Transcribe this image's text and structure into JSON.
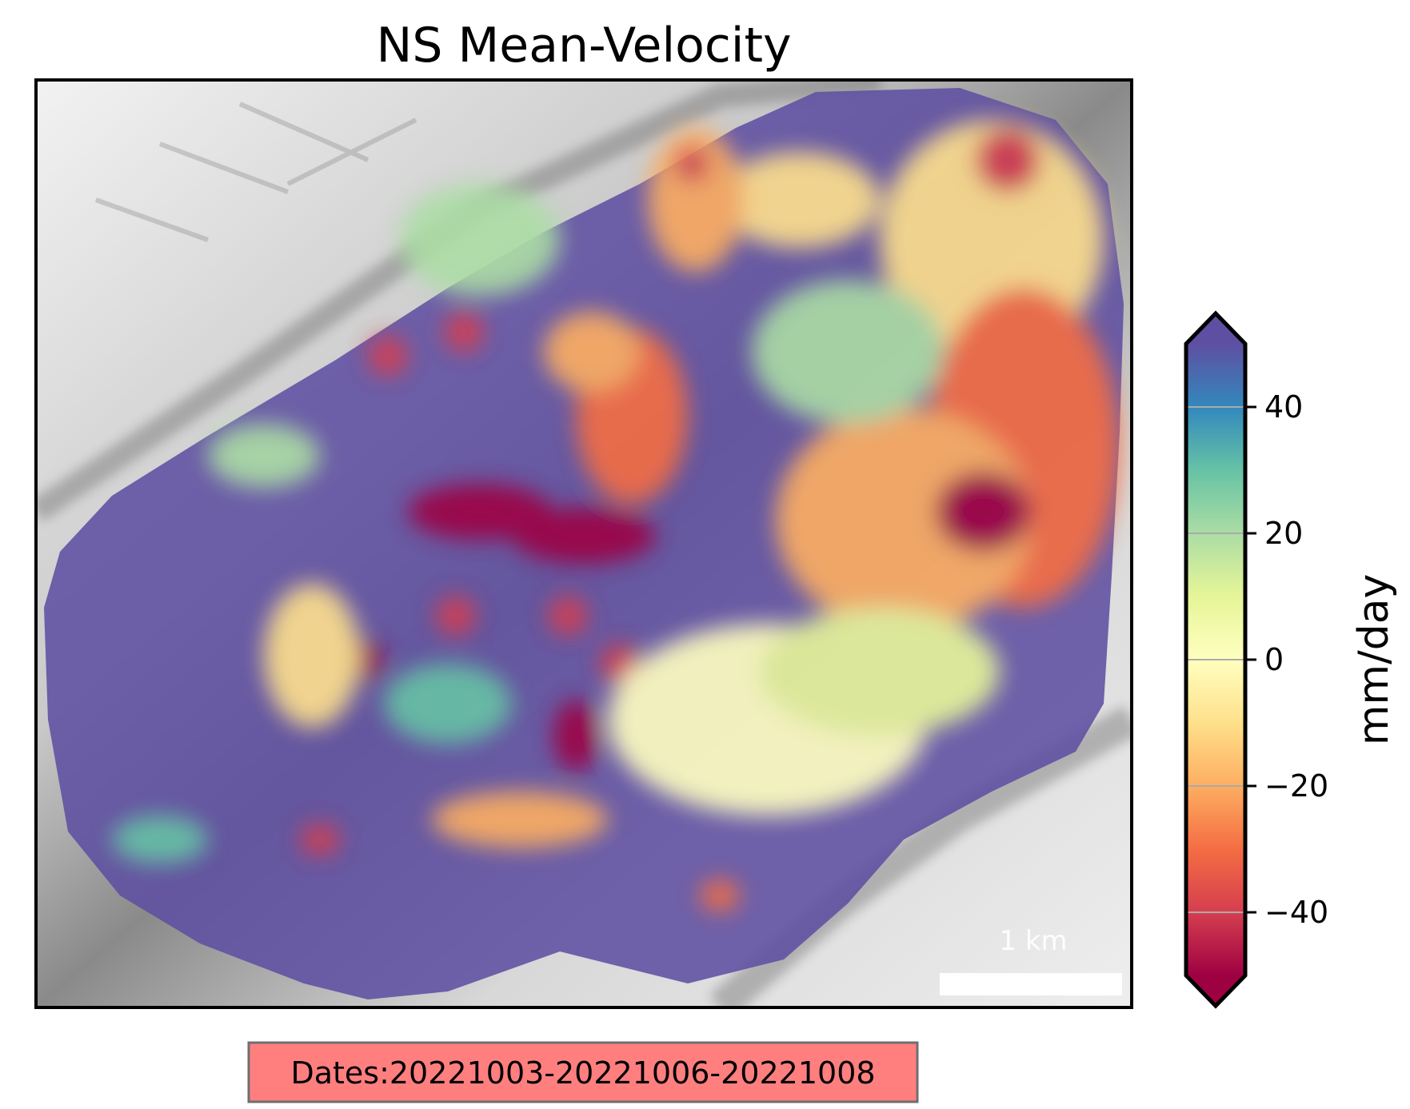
{
  "chart_data": {
    "type": "heatmap",
    "title": "NS Mean-Velocity",
    "background": "grayscale hillshade relief",
    "colorbar": {
      "label": "mm/day",
      "range": [
        -50,
        50
      ],
      "ticks": [
        40,
        20,
        0,
        -20,
        -40
      ],
      "tick_labels": [
        "40",
        "20",
        "0",
        "−20",
        "−40"
      ],
      "extend": "both",
      "colormap": "Spectral",
      "colors": [
        "#9e0142",
        "#d53e4f",
        "#f46d43",
        "#fdae61",
        "#fee08b",
        "#ffffbf",
        "#e6f598",
        "#abdda4",
        "#66c2a5",
        "#3288bd",
        "#5e4fa2"
      ]
    },
    "scale_bar": {
      "label": "1 km"
    },
    "annotation": "Dates:20221003-20221006-20221008"
  },
  "colors": {
    "annotation_box": "#ff7f7f",
    "annotation_border": "#6f6f6f",
    "dominant_positive": "#5e4fa2",
    "dominant_negative": "#9e0142"
  }
}
